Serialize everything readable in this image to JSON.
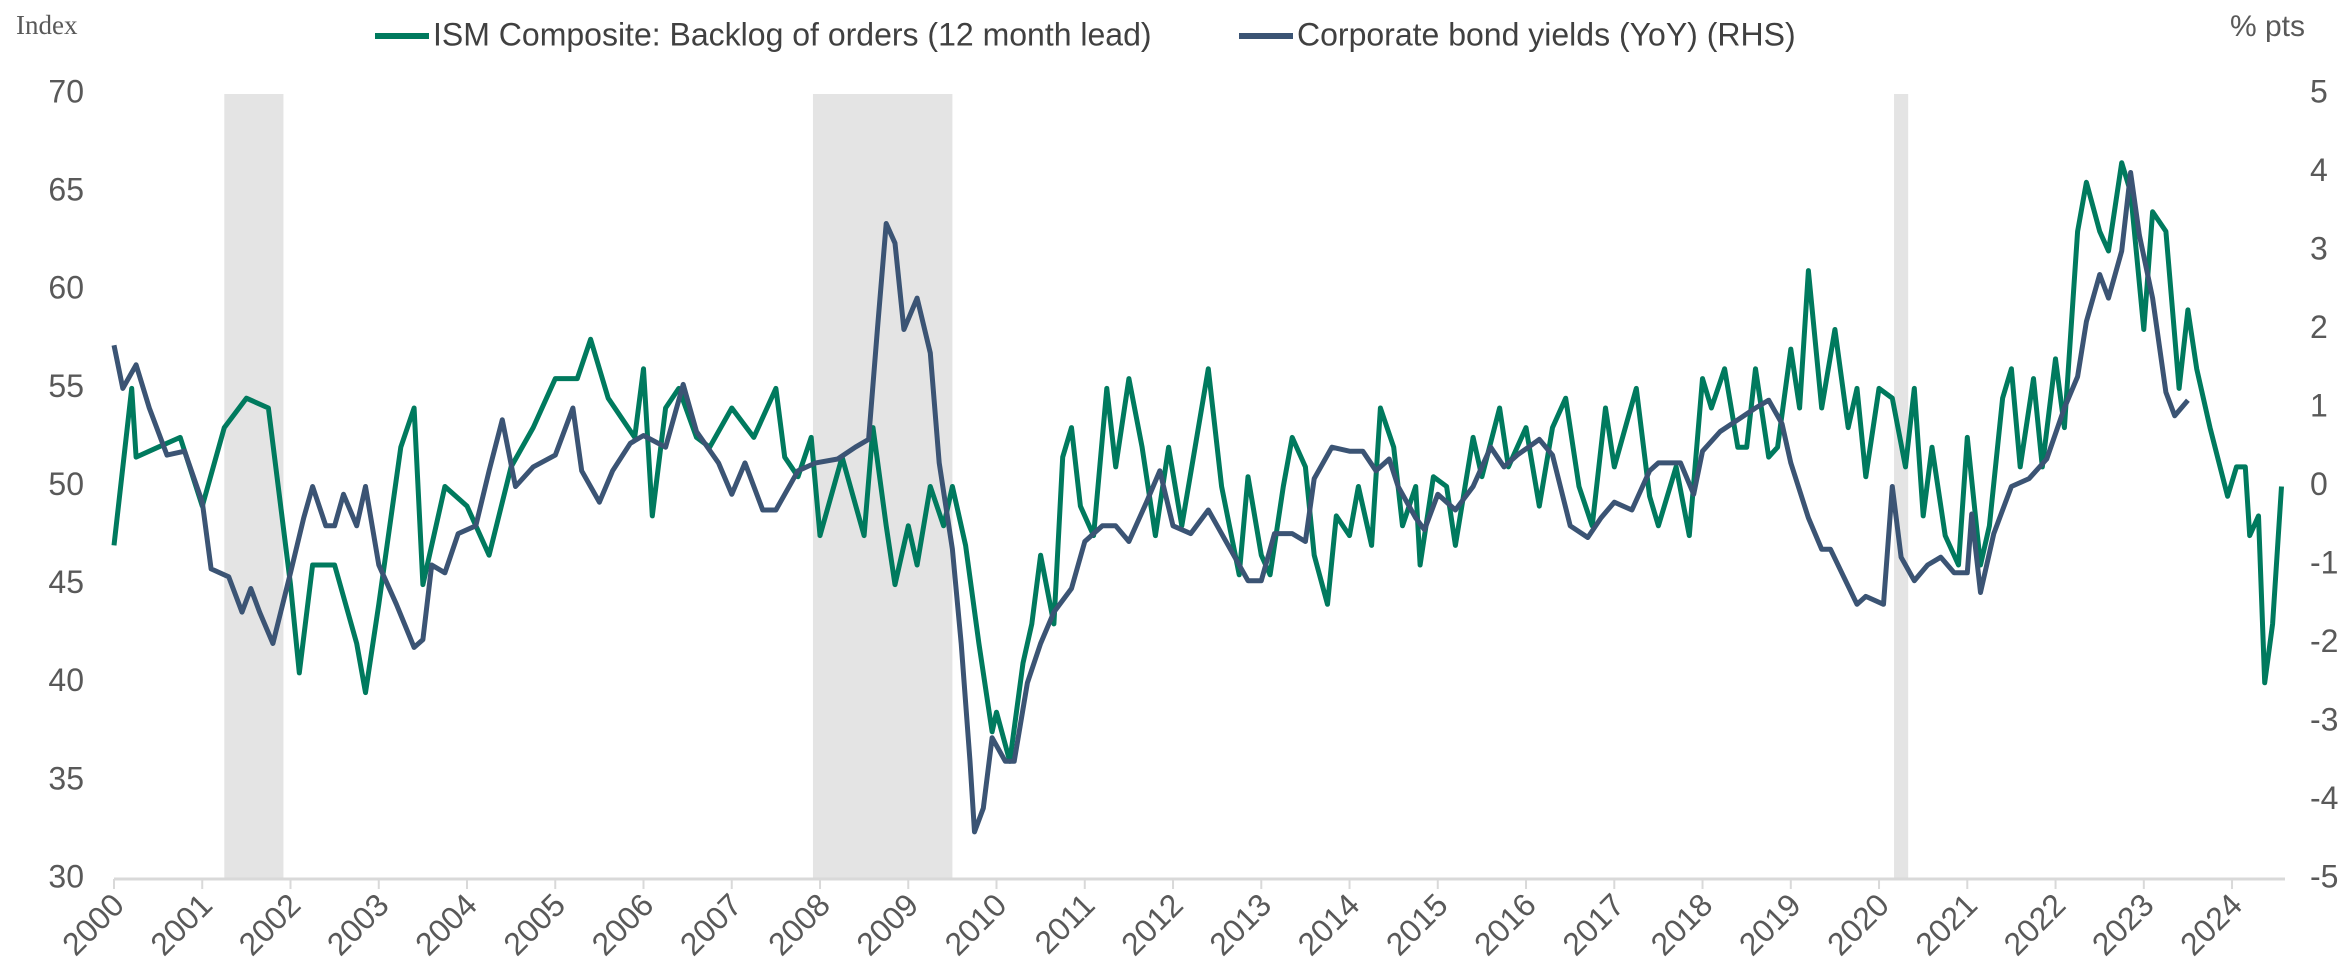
{
  "chart_data": {
    "type": "line",
    "y_label": "Index",
    "y2_label": "% pts",
    "xlim": [
      2000,
      2024.6
    ],
    "xticks": [
      2000,
      2001,
      2002,
      2003,
      2004,
      2005,
      2006,
      2007,
      2008,
      2009,
      2010,
      2011,
      2012,
      2013,
      2014,
      2015,
      2016,
      2017,
      2018,
      2019,
      2020,
      2021,
      2022,
      2023,
      2024
    ],
    "ylim": [
      30,
      70
    ],
    "yticks": [
      30,
      35,
      40,
      45,
      50,
      55,
      60,
      65,
      70
    ],
    "y2lim": [
      -5,
      5
    ],
    "y2ticks": [
      -5,
      -4,
      -3,
      -2,
      -1,
      0,
      1,
      2,
      3,
      4,
      5
    ],
    "recessions": [
      {
        "start": 2001.25,
        "end": 2001.92,
        "color": "#e4e4e4"
      },
      {
        "start": 2007.92,
        "end": 2009.5,
        "color": "#e4e4e4"
      },
      {
        "start": 2020.17,
        "end": 2020.33,
        "color": "#e4e4e4"
      }
    ],
    "series": [
      {
        "name": "ISM Composite: Backlog of orders (12 month lead)",
        "color": "#007a5e",
        "axis": "y",
        "x": [
          2000.0,
          2000.2,
          2000.25,
          2000.5,
          2000.75,
          2001.0,
          2001.25,
          2001.5,
          2001.75,
          2002.0,
          2002.1,
          2002.25,
          2002.5,
          2002.75,
          2002.85,
          2003.0,
          2003.25,
          2003.4,
          2003.5,
          2003.75,
          2004.0,
          2004.25,
          2004.5,
          2004.75,
          2005.0,
          2005.25,
          2005.4,
          2005.6,
          2005.9,
          2006.0,
          2006.1,
          2006.25,
          2006.4,
          2006.6,
          2006.75,
          2007.0,
          2007.25,
          2007.5,
          2007.6,
          2007.75,
          2007.9,
          2008.0,
          2008.25,
          2008.5,
          2008.6,
          2008.75,
          2008.85,
          2009.0,
          2009.1,
          2009.25,
          2009.4,
          2009.5,
          2009.65,
          2009.8,
          2009.95,
          2010.0,
          2010.15,
          2010.3,
          2010.4,
          2010.5,
          2010.65,
          2010.75,
          2010.85,
          2010.95,
          2011.1,
          2011.25,
          2011.35,
          2011.5,
          2011.65,
          2011.8,
          2011.95,
          2012.1,
          2012.25,
          2012.4,
          2012.55,
          2012.75,
          2012.85,
          2013.0,
          2013.1,
          2013.25,
          2013.35,
          2013.5,
          2013.6,
          2013.75,
          2013.85,
          2014.0,
          2014.1,
          2014.25,
          2014.35,
          2014.5,
          2014.6,
          2014.75,
          2014.8,
          2014.95,
          2015.1,
          2015.2,
          2015.4,
          2015.5,
          2015.7,
          2015.8,
          2016.0,
          2016.15,
          2016.3,
          2016.45,
          2016.6,
          2016.75,
          2016.9,
          2017.0,
          2017.25,
          2017.4,
          2017.5,
          2017.7,
          2017.85,
          2018.0,
          2018.1,
          2018.25,
          2018.4,
          2018.5,
          2018.6,
          2018.75,
          2018.85,
          2019.0,
          2019.1,
          2019.2,
          2019.35,
          2019.5,
          2019.65,
          2019.75,
          2019.85,
          2020.0,
          2020.15,
          2020.3,
          2020.4,
          2020.5,
          2020.6,
          2020.75,
          2020.9,
          2021.0,
          2021.15,
          2021.25,
          2021.4,
          2021.5,
          2021.6,
          2021.75,
          2021.85,
          2022.0,
          2022.1,
          2022.25,
          2022.35,
          2022.5,
          2022.6,
          2022.75,
          2022.85,
          2023.0,
          2023.1,
          2023.25,
          2023.4,
          2023.5,
          2023.6,
          2023.75,
          2023.95,
          2024.05,
          2024.15,
          2024.2,
          2024.3,
          2024.37,
          2024.46,
          2024.56
        ],
        "values": [
          47,
          55,
          51.5,
          52,
          52.5,
          49,
          53,
          54.5,
          54,
          45,
          40.5,
          46,
          46,
          42,
          39.5,
          44,
          52,
          54,
          45,
          50,
          49,
          46.5,
          51,
          53,
          55.5,
          55.5,
          57.5,
          54.5,
          52.5,
          56,
          48.5,
          54,
          55,
          52.5,
          52,
          54,
          52.5,
          55,
          51.5,
          50.5,
          52.5,
          47.5,
          51.5,
          47.5,
          53,
          48,
          45,
          48,
          46,
          50,
          48,
          50,
          47,
          42,
          37.5,
          38.5,
          36,
          41,
          43,
          46.5,
          43,
          51.5,
          53,
          49,
          47.5,
          55,
          51,
          55.5,
          52,
          47.5,
          52,
          48,
          52,
          56,
          50,
          45.5,
          50.5,
          46.5,
          45.5,
          50,
          52.5,
          51,
          46.5,
          44,
          48.5,
          47.5,
          50,
          47,
          54,
          52,
          48,
          50,
          46,
          50.5,
          50,
          47,
          52.5,
          50.5,
          54,
          51,
          53,
          49,
          53,
          54.5,
          50,
          48,
          54,
          51,
          55,
          49.5,
          48,
          51,
          47.5,
          55.5,
          54,
          56,
          52,
          52,
          56,
          51.5,
          52,
          57,
          54,
          61,
          54,
          58,
          53,
          55,
          50.5,
          55,
          54.5,
          51,
          55,
          48.5,
          52,
          47.5,
          46,
          52.5,
          46,
          48,
          54.5,
          56,
          51,
          55.5,
          51,
          56.5,
          53,
          63,
          65.5,
          63,
          62,
          66.5,
          65,
          58,
          64,
          63,
          55,
          59,
          56,
          53,
          49.5,
          51,
          51,
          47.5,
          48.5,
          40,
          43,
          50
        ]
      },
      {
        "name": "Corporate bond yields (YoY) (RHS)",
        "color": "#3b5474",
        "axis": "y2",
        "x": [
          2000.0,
          2000.1,
          2000.25,
          2000.4,
          2000.6,
          2000.8,
          2001.0,
          2001.1,
          2001.3,
          2001.45,
          2001.55,
          2001.65,
          2001.8,
          2002.0,
          2002.15,
          2002.25,
          2002.4,
          2002.5,
          2002.6,
          2002.75,
          2002.85,
          2003.0,
          2003.2,
          2003.4,
          2003.5,
          2003.6,
          2003.75,
          2003.9,
          2004.1,
          2004.25,
          2004.4,
          2004.55,
          2004.75,
          2005.0,
          2005.2,
          2005.3,
          2005.5,
          2005.65,
          2005.85,
          2006.0,
          2006.25,
          2006.45,
          2006.6,
          2006.85,
          2007.0,
          2007.15,
          2007.35,
          2007.5,
          2007.75,
          2007.95,
          2008.2,
          2008.4,
          2008.55,
          2008.65,
          2008.75,
          2008.85,
          2008.95,
          2009.1,
          2009.25,
          2009.35,
          2009.5,
          2009.6,
          2009.7,
          2009.75,
          2009.85,
          2009.95,
          2010.1,
          2010.2,
          2010.35,
          2010.5,
          2010.65,
          2010.85,
          2011.0,
          2011.2,
          2011.35,
          2011.5,
          2011.7,
          2011.85,
          2012.0,
          2012.2,
          2012.4,
          2012.5,
          2012.65,
          2012.85,
          2013.0,
          2013.15,
          2013.35,
          2013.5,
          2013.6,
          2013.8,
          2014.0,
          2014.15,
          2014.3,
          2014.45,
          2014.55,
          2014.75,
          2014.85,
          2015.0,
          2015.2,
          2015.4,
          2015.6,
          2015.75,
          2015.9,
          2016.15,
          2016.3,
          2016.5,
          2016.7,
          2016.85,
          2017.0,
          2017.2,
          2017.4,
          2017.5,
          2017.75,
          2017.9,
          2018.0,
          2018.2,
          2018.4,
          2018.6,
          2018.75,
          2018.9,
          2019.0,
          2019.2,
          2019.35,
          2019.45,
          2019.6,
          2019.75,
          2019.85,
          2020.05,
          2020.15,
          2020.25,
          2020.4,
          2020.55,
          2020.7,
          2020.85,
          2021.0,
          2021.05,
          2021.15,
          2021.3,
          2021.5,
          2021.7,
          2021.9,
          2022.1,
          2022.25,
          2022.35,
          2022.5,
          2022.6,
          2022.75,
          2022.85,
          2022.95,
          2023.1,
          2023.25,
          2023.35,
          2023.5
        ],
        "values": [
          1.8,
          1.25,
          1.55,
          1.0,
          0.4,
          0.45,
          -0.2,
          -1.05,
          -1.15,
          -1.6,
          -1.3,
          -1.6,
          -2.0,
          -1.1,
          -0.4,
          0.0,
          -0.5,
          -0.5,
          -0.1,
          -0.5,
          0.0,
          -1.0,
          -1.5,
          -2.05,
          -1.95,
          -1.0,
          -1.1,
          -0.6,
          -0.5,
          0.2,
          0.85,
          0.0,
          0.25,
          0.4,
          1.0,
          0.2,
          -0.2,
          0.2,
          0.55,
          0.65,
          0.5,
          1.3,
          0.7,
          0.3,
          -0.1,
          0.3,
          -0.3,
          -0.3,
          0.2,
          0.3,
          0.35,
          0.5,
          0.6,
          2.0,
          3.35,
          3.1,
          2.0,
          2.4,
          1.7,
          0.3,
          -0.8,
          -2.0,
          -3.5,
          -4.4,
          -4.1,
          -3.2,
          -3.5,
          -3.5,
          -2.5,
          -2.0,
          -1.6,
          -1.3,
          -0.7,
          -0.5,
          -0.5,
          -0.7,
          -0.2,
          0.2,
          -0.5,
          -0.6,
          -0.3,
          -0.5,
          -0.8,
          -1.2,
          -1.2,
          -0.6,
          -0.6,
          -0.7,
          0.1,
          0.5,
          0.45,
          0.45,
          0.2,
          0.35,
          0.0,
          -0.4,
          -0.55,
          -0.1,
          -0.3,
          0.0,
          0.5,
          0.25,
          0.4,
          0.6,
          0.4,
          -0.5,
          -0.65,
          -0.4,
          -0.2,
          -0.3,
          0.2,
          0.3,
          0.3,
          -0.1,
          0.45,
          0.7,
          0.85,
          1.0,
          1.1,
          0.8,
          0.3,
          -0.4,
          -0.8,
          -0.8,
          -1.15,
          -1.5,
          -1.4,
          -1.5,
          0.0,
          -0.9,
          -1.2,
          -1.0,
          -0.9,
          -1.1,
          -1.1,
          -0.35,
          -1.35,
          -0.6,
          0.0,
          0.1,
          0.35,
          1.0,
          1.4,
          2.1,
          2.7,
          2.4,
          3.0,
          4.0,
          3.2,
          2.4,
          1.2,
          0.9,
          1.1
        ]
      }
    ]
  }
}
